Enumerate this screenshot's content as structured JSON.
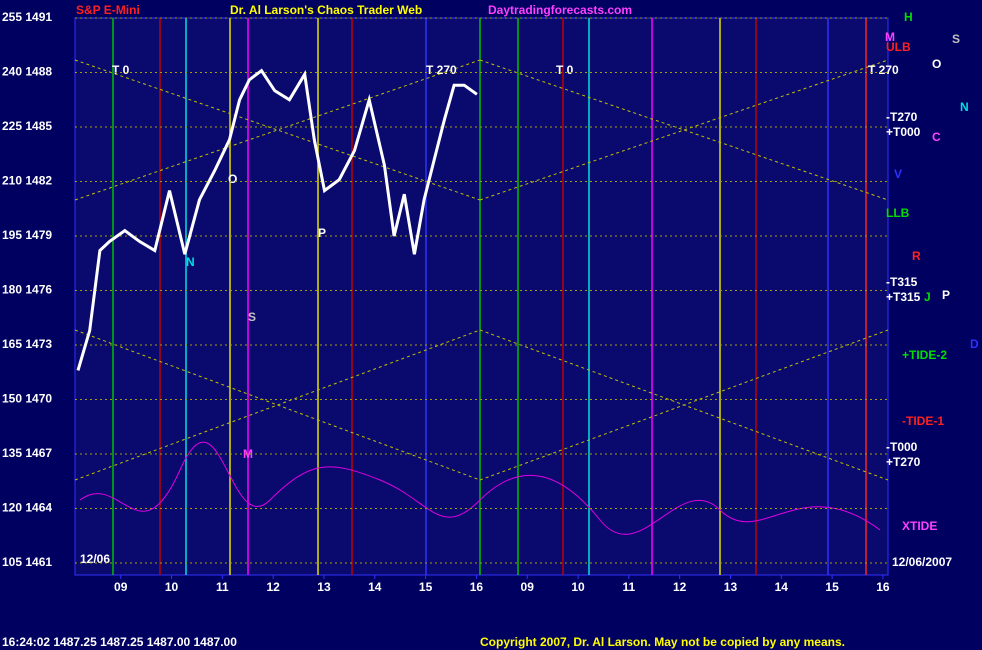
{
  "chart_data": {
    "type": "line",
    "title": "Dr. Al Larson's Chaos Trader Web",
    "subtitle": "S&P E-Mini",
    "site": "Daytradingforecasts.com",
    "date_label": "12/06/2007",
    "start_label": "12/06",
    "quote_line": "16:24:02  1487.25 1487.25 1487.00 1487.00",
    "copyright": "Copyright 2007, Dr. Al Larson. May not be copied by any means.",
    "annotations": [
      "T 0",
      "T 270",
      "T 0",
      "T 270",
      "ULB",
      "-T270",
      "+T000",
      "LLB",
      "-T315",
      "+T315",
      "+TIDE-2",
      "-TIDE-1",
      "-T000",
      "+T270",
      "XTIDE",
      "H",
      "M",
      "S",
      "O",
      "N",
      "C",
      "V",
      "R",
      "J",
      "P",
      "D",
      "O",
      "P",
      "N",
      "S",
      "M"
    ],
    "xlim": [
      8.1,
      24.1
    ],
    "xticks": [
      {
        "value": 9,
        "label": "09"
      },
      10,
      11,
      12,
      13,
      14,
      15,
      16,
      {
        "value": 17,
        "label": "09"
      },
      {
        "value": 18,
        "label": "10"
      },
      {
        "value": 19,
        "label": "11"
      },
      {
        "value": 20,
        "label": "12"
      },
      {
        "value": 21,
        "label": "13"
      },
      {
        "value": 22,
        "label": "14"
      },
      {
        "value": 23,
        "label": "15"
      },
      {
        "value": 24,
        "label": "16"
      }
    ],
    "ylim": [
      1461,
      1491
    ],
    "yticks": [
      {
        "value": 1491,
        "label": "255 1491"
      },
      {
        "value": 1488,
        "label": "240 1488"
      },
      {
        "value": 1485,
        "label": "225 1485"
      },
      {
        "value": 1482,
        "label": "210 1482"
      },
      {
        "value": 1479,
        "label": "195 1479"
      },
      {
        "value": 1476,
        "label": "180 1476"
      },
      {
        "value": 1473,
        "label": "165 1473"
      },
      {
        "value": 1470,
        "label": "150 1470"
      },
      {
        "value": 1467,
        "label": "135 1467"
      },
      {
        "value": 1464,
        "label": "120 1464"
      },
      {
        "value": 1461,
        "label": "105 1461"
      }
    ],
    "grid": true,
    "x": [
      8.16,
      8.39,
      8.59,
      8.78,
      9.08,
      9.37,
      9.67,
      9.96,
      10.26,
      10.55,
      10.85,
      11.14,
      11.34,
      11.53,
      11.77,
      12.03,
      12.32,
      12.62,
      12.81,
      13.01,
      13.3,
      13.6,
      13.89,
      14.19,
      14.38,
      14.58,
      14.78,
      14.97,
      15.17,
      15.37,
      15.56,
      15.76,
      16.01
    ],
    "series": [
      {
        "name": "S&P E-Mini",
        "color": "#ffffff",
        "values": [
          1471.6,
          1473.8,
          1478.2,
          1478.7,
          1479.3,
          1478.7,
          1478.2,
          1481.5,
          1478,
          1481,
          1482.6,
          1484.3,
          1486.5,
          1487.6,
          1488.1,
          1487,
          1486.5,
          1487.9,
          1484.3,
          1481.5,
          1482.1,
          1483.7,
          1486.5,
          1482.9,
          1479,
          1481.3,
          1478,
          1481,
          1483.2,
          1485.4,
          1487.3,
          1487.3,
          1486.8
        ]
      }
    ]
  }
}
